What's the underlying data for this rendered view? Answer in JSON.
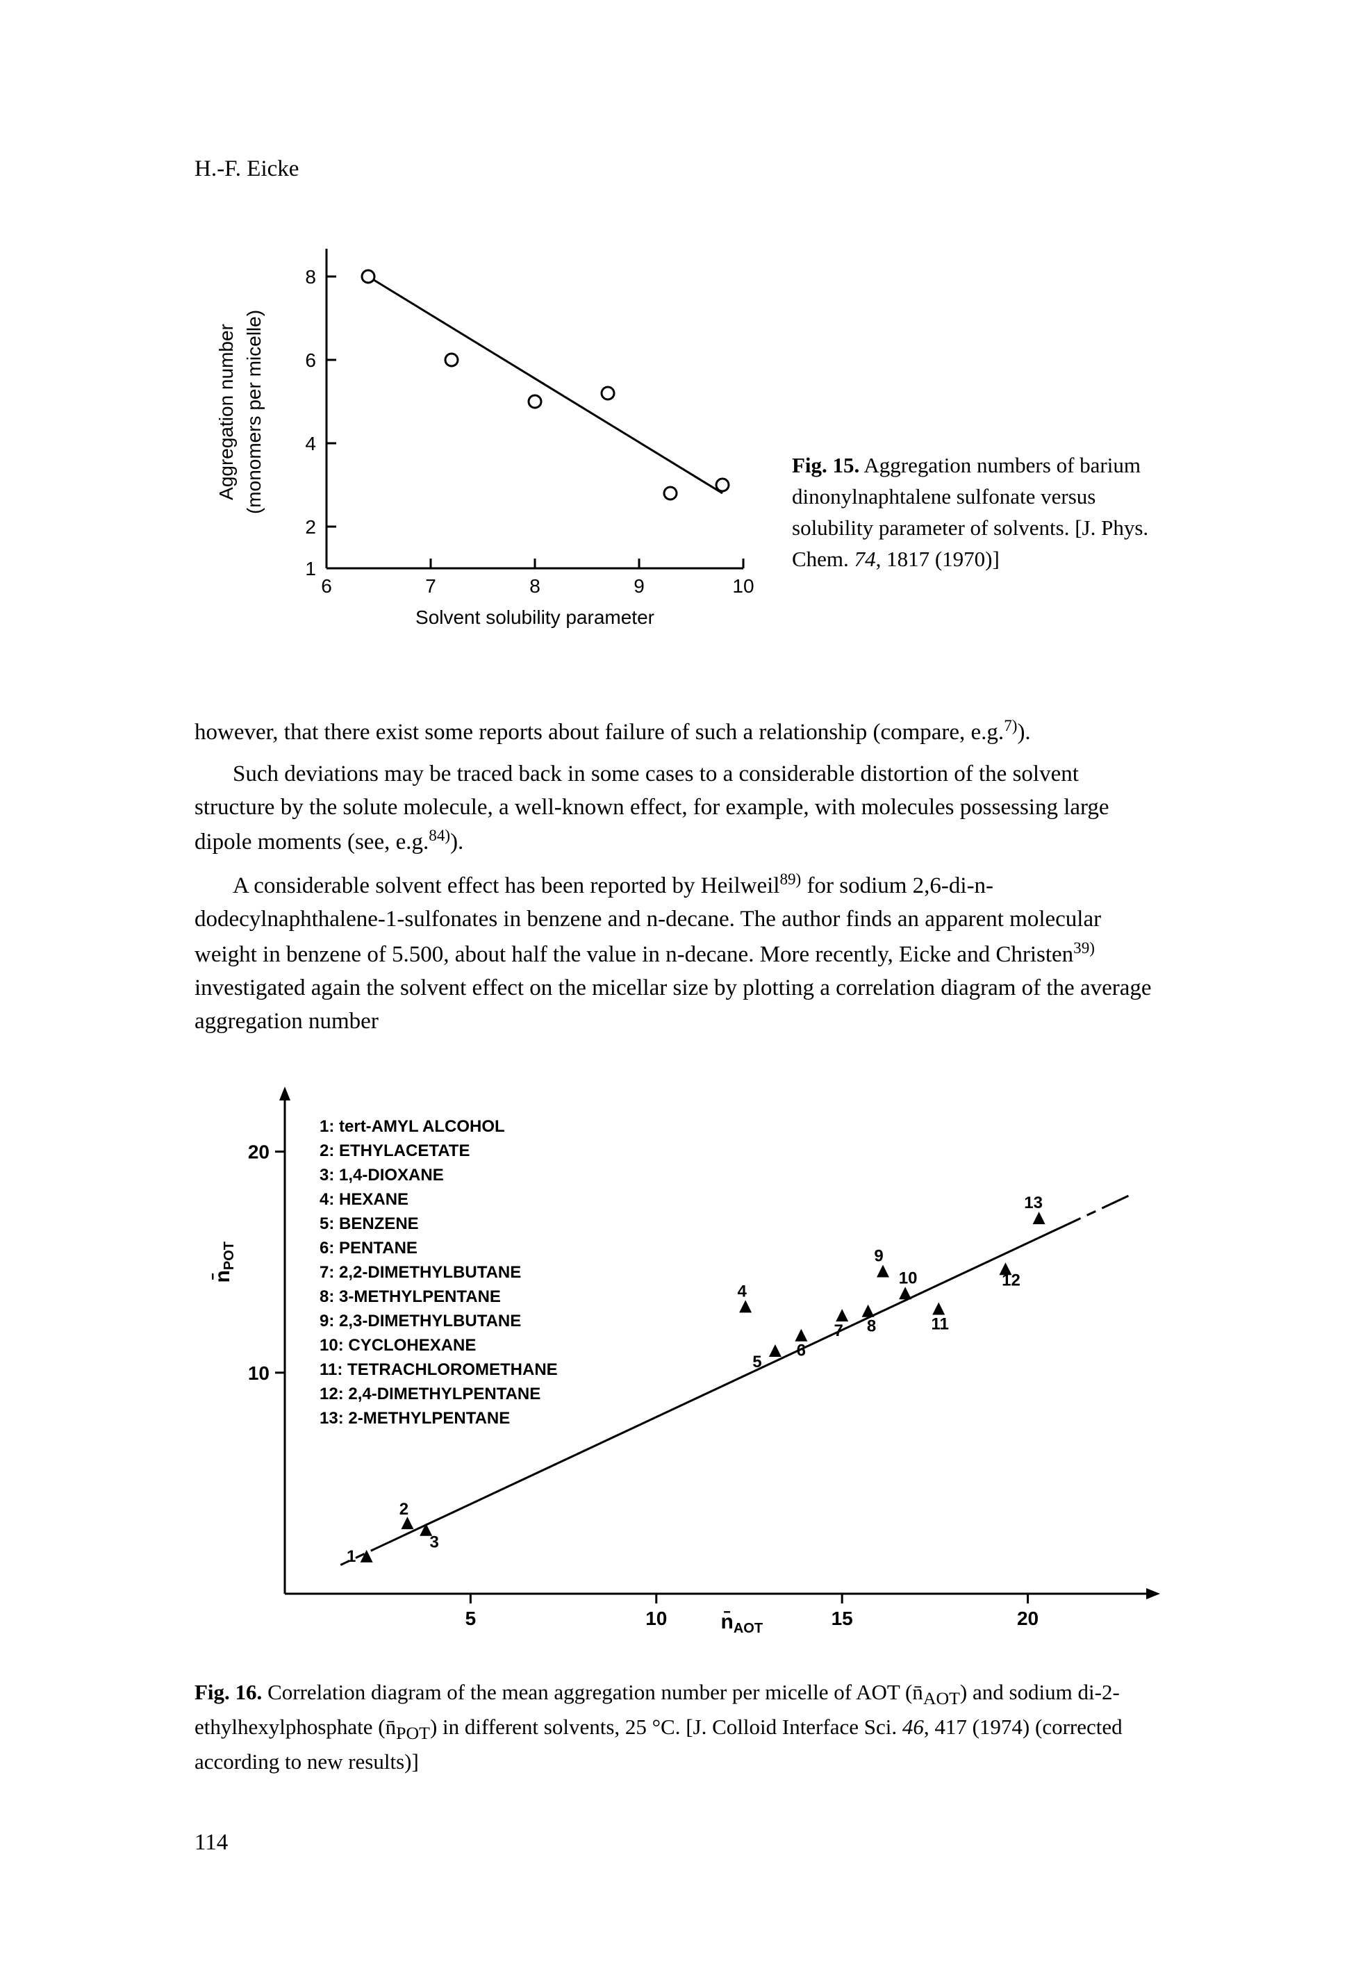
{
  "author": "H.-F. Eicke",
  "fig15": {
    "type": "scatter",
    "xlabel": "Solvent solubility parameter",
    "ylabel_line1": "Aggregation number",
    "ylabel_line2": "(monomers per micelle)",
    "xlim": [
      6,
      10
    ],
    "ylim": [
      1,
      8.5
    ],
    "xticks": [
      6,
      7,
      8,
      9,
      10
    ],
    "yticks": [
      2,
      4,
      6,
      8
    ],
    "y_extra_tick": 1,
    "points": [
      {
        "x": 6.4,
        "y": 8.0
      },
      {
        "x": 7.2,
        "y": 6.0
      },
      {
        "x": 8.0,
        "y": 5.0
      },
      {
        "x": 8.7,
        "y": 5.2
      },
      {
        "x": 9.3,
        "y": 2.8
      },
      {
        "x": 9.8,
        "y": 3.0
      }
    ],
    "fit_line": {
      "x1": 6.4,
      "y1": 8.0,
      "x2": 9.8,
      "y2": 2.8
    },
    "marker": "open-circle",
    "marker_radius": 9,
    "line_width": 3,
    "color": "#000000",
    "background": "#ffffff",
    "caption_label": "Fig. 15.",
    "caption_body": " Aggregation numbers of barium dinonylnaphtalene sulfonate versus solubility parameter of solvents. [J. Phys. Chem. ",
    "caption_ital": "74",
    "caption_tail": ", 1817 (1970)]"
  },
  "body_p1a": "however, that there exist some reports about failure of such a relationship (compare, e.g.",
  "body_p1_sup": "7)",
  "body_p1b": ").",
  "body_p2a": "Such deviations may be traced back in some cases to a considerable distortion of the solvent structure by the solute molecule, a well-known effect, for example, with molecules possessing large dipole moments (see, e.g.",
  "body_p2_sup": "84)",
  "body_p2b": ").",
  "body_p3a": "A considerable solvent effect has been reported by Heilweil",
  "body_p3_sup1": "89)",
  "body_p3b": " for sodium 2,6-di-n-dodecylnaphthalene-1-sulfonates in benzene and n-decane. The author finds an apparent molecular weight in benzene of 5.500, about half the value in n-decane. More recently, Eicke and Christen",
  "body_p3_sup2": "39)",
  "body_p3c": " investigated again the solvent effect on the micellar size by plotting a correlation diagram of the average aggregation number",
  "fig16": {
    "type": "scatter",
    "xlabel": "n̄AOT",
    "ylabel": "n̄POT",
    "xlim": [
      0,
      23
    ],
    "ylim": [
      0,
      22
    ],
    "xticks": [
      5,
      10,
      15,
      20
    ],
    "yticks": [
      10,
      20
    ],
    "legend": [
      "1: tert-AMYL ALCOHOL",
      "2: ETHYLACETATE",
      "3: 1,4-DIOXANE",
      "4: HEXANE",
      "5: BENZENE",
      "6: PENTANE",
      "7: 2,2-DIMETHYLBUTANE",
      "8: 3-METHYLPENTANE",
      "9: 2,3-DIMETHYLBUTANE",
      "10: CYCLOHEXANE",
      "11: TETRACHLOROMETHANE",
      "12: 2,4-DIMETHYLPENTANE",
      "13: 2-METHYLPENTANE"
    ],
    "points": [
      {
        "n": 1,
        "x": 2.2,
        "y": 1.7,
        "lx": -22,
        "ly": 0
      },
      {
        "n": 2,
        "x": 3.3,
        "y": 3.2,
        "lx": -5,
        "ly": -20
      },
      {
        "n": 3,
        "x": 3.8,
        "y": 2.9,
        "lx": 12,
        "ly": 18
      },
      {
        "n": 4,
        "x": 12.4,
        "y": 13.0,
        "lx": -5,
        "ly": -22
      },
      {
        "n": 5,
        "x": 13.2,
        "y": 11.0,
        "lx": -26,
        "ly": 16
      },
      {
        "n": 6,
        "x": 13.9,
        "y": 11.7,
        "lx": 0,
        "ly": 22
      },
      {
        "n": 7,
        "x": 15.0,
        "y": 12.6,
        "lx": -5,
        "ly": 22
      },
      {
        "n": 8,
        "x": 15.7,
        "y": 12.8,
        "lx": 5,
        "ly": 22
      },
      {
        "n": 9,
        "x": 16.1,
        "y": 14.6,
        "lx": -6,
        "ly": -22
      },
      {
        "n": 10,
        "x": 16.7,
        "y": 13.6,
        "lx": 4,
        "ly": -22
      },
      {
        "n": 11,
        "x": 17.6,
        "y": 12.9,
        "lx": 2,
        "ly": 22
      },
      {
        "n": 12,
        "x": 19.4,
        "y": 14.7,
        "lx": 8,
        "ly": 16
      },
      {
        "n": 13,
        "x": 20.3,
        "y": 17.0,
        "lx": -8,
        "ly": -22
      }
    ],
    "fit_line": {
      "x1": 1.5,
      "y1": 1.3,
      "x2": 22.2,
      "y2": 17.6
    },
    "marker": "triangle",
    "marker_size": 18,
    "line_width": 3,
    "color": "#000000",
    "background": "#ffffff",
    "caption_label": "Fig. 16.",
    "caption_body1": " Correlation diagram of the mean aggregation number per micelle of AOT (n̄",
    "caption_sub1": "AOT",
    "caption_body2": ") and sodium di-2-ethylhexylphosphate (n̄",
    "caption_sub2": "POT",
    "caption_body3": ") in different solvents, 25 °C. [J. Colloid Interface Sci. ",
    "caption_ital": "46",
    "caption_tail": ", 417 (1974) (corrected according to new results)]"
  },
  "page_number": "114"
}
